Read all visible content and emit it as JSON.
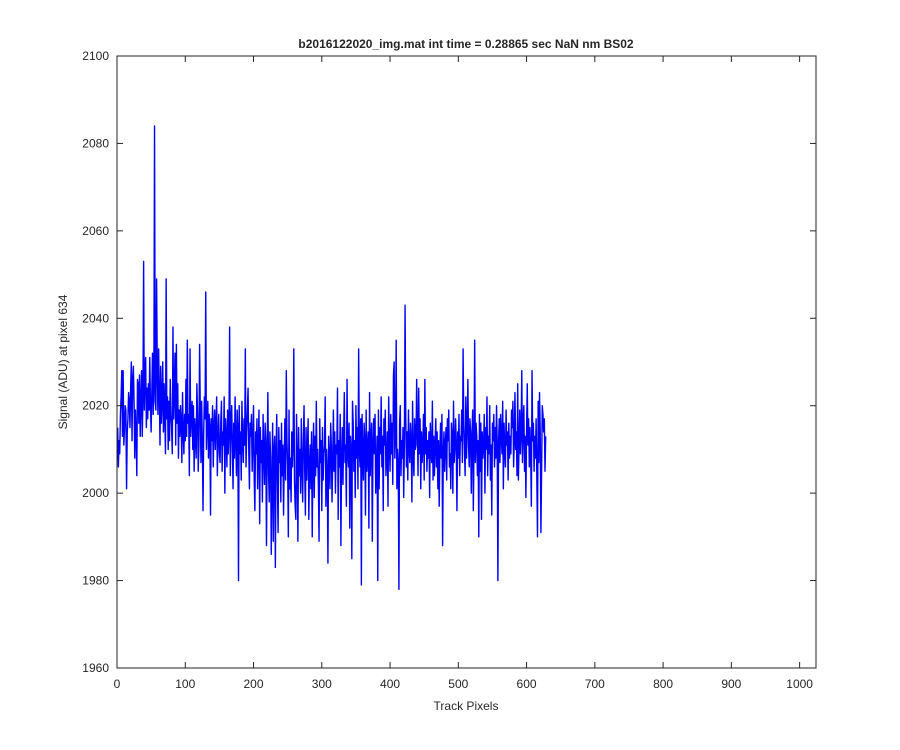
{
  "chart_data": {
    "type": "line",
    "title": "b2016122020_img.mat int time = 0.28865 sec  NaN nm BS02",
    "xlabel": "Track Pixels",
    "ylabel": "Signal (ADU) at pixel 634",
    "xlim": [
      0,
      1024
    ],
    "ylim": [
      1960,
      2100
    ],
    "xticks": [
      "0",
      "100",
      "200",
      "300",
      "400",
      "500",
      "600",
      "700",
      "800",
      "900",
      "1000"
    ],
    "yticks": [
      "1960",
      "1980",
      "2000",
      "2020",
      "2040",
      "2060",
      "2080",
      "2100"
    ],
    "grid": false,
    "legend": "none",
    "series": [
      {
        "color": "#0000ff",
        "x_start": 1,
        "x_step": 1,
        "values": [
          2015,
          2006,
          2012,
          2009,
          2018,
          2022,
          2028,
          2013,
          2028,
          2011,
          2015,
          2020,
          2019,
          2001,
          2014,
          2017,
          2023,
          2021,
          2015,
          2024,
          2030,
          2012,
          2026,
          2029,
          2021,
          2008,
          2019,
          2014,
          2004,
          2026,
          2025,
          2016,
          2027,
          2013,
          2021,
          2028,
          2013,
          2022,
          2053,
          2019,
          2027,
          2031,
          2015,
          2024,
          2017,
          2025,
          2019,
          2031,
          2020,
          2014,
          2023,
          2032,
          2018,
          2024,
          2084,
          2021,
          2019,
          2049,
          2028,
          2018,
          2033,
          2023,
          2011,
          2029,
          2016,
          2021,
          2030,
          2014,
          2025,
          2018,
          2009,
          2049,
          2017,
          2022,
          2010,
          2021,
          2012,
          2026,
          2018,
          2015,
          2009,
          2038,
          2017,
          2023,
          2032,
          2011,
          2034,
          2016,
          2025,
          2008,
          2019,
          2013,
          2020,
          2016,
          2007,
          2023,
          2014,
          2009,
          2018,
          2012,
          2026,
          2013,
          2035,
          2016,
          2018,
          2004,
          2033,
          2013,
          2018,
          2021,
          2010,
          2020,
          2005,
          2017,
          2013,
          2008,
          2025,
          2018,
          2005,
          2011,
          2034,
          2019,
          2007,
          2021,
          2012,
          1996,
          2014,
          2022,
          2017,
          2046,
          2010,
          2016,
          2021,
          2008,
          2018,
          2015,
          1995,
          2017,
          2012,
          2020,
          2006,
          2015,
          2019,
          2010,
          2016,
          2022,
          2004,
          2013,
          2018,
          2009,
          2007,
          2016,
          2021,
          2005,
          2014,
          2011,
          2022,
          2000,
          2017,
          2013,
          2006,
          2019,
          2009,
          2014,
          2038,
          2004,
          2015,
          2020,
          2011,
          2001,
          2016,
          2008,
          2022,
          2012,
          2004,
          2019,
          2015,
          1980,
          2020,
          2009,
          2014,
          2003,
          2021,
          2012,
          2007,
          2017,
          2011,
          2033,
          2006,
          2014,
          2019,
          2024,
          2010,
          2001,
          2016,
          2013,
          2018,
          2005,
          2012,
          2020,
          2003,
          1996,
          2014,
          2009,
          2017,
          2001,
          2011,
          2019,
          1993,
          2015,
          2007,
          2012,
          1998,
          2018,
          2009,
          2002,
          2016,
          2012,
          1988,
          2010,
          2023,
          2005,
          1998,
          2014,
          2008,
          1986,
          2003,
          2016,
          1989,
          2010,
          2013,
          1983,
          2009,
          2018,
          2002,
          1991,
          2015,
          2007,
          2012,
          1998,
          2016,
          2004,
          2011,
          1995,
          2008,
          2017,
          2003,
          2028,
          2012,
          2006,
          1990,
          2019,
          2001,
          2008,
          1998,
          2014,
          2006,
          2011,
          2033,
          2003,
          1997,
          1994,
          2018,
          2008,
          1989,
          2015,
          2004,
          2010,
          2000,
          2017,
          2006,
          1998,
          2012,
          2020,
          2005,
          1995,
          2015,
          2003,
          2010,
          2017,
          1994,
          2006,
          2011,
          2001,
          2014,
          1990,
          2008,
          2016,
          1999,
          2013,
          2004,
          2021,
          2006,
          2010,
          2002,
          1989,
          2017,
          2007,
          2012,
          1996,
          2015,
          2003,
          2009,
          2011,
          2022,
          1997,
          2010,
          2005,
          1984,
          2013,
          2008,
          2001,
          2016,
          2011,
          1998,
          2007,
          2019,
          2005,
          2014,
          2000,
          2011,
          2009,
          2024,
          1994,
          2012,
          2006,
          2018,
          1988,
          2008,
          2015,
          2002,
          2013,
          2023,
          2007,
          2011,
          1997,
          2026,
          2009,
          2006,
          2016,
          1992,
          2013,
          2010,
          1985,
          2021,
          2016,
          2005,
          2012,
          1999,
          2020,
          2008,
          2015,
          2001,
          2033,
          2010,
          2006,
          2017,
          1979,
          2018,
          2009,
          2003,
          2016,
          2012,
          1995,
          2019,
          2005,
          2010,
          2014,
          1992,
          2023,
          2004,
          2012,
          2016,
          1989,
          2011,
          2017,
          2009,
          2018,
          2000,
          2006,
          2013,
          1980,
          2019,
          2001,
          2015,
          2009,
          2022,
          2006,
          2013,
          1996,
          2017,
          2011,
          2019,
          2004,
          2008,
          2014,
          1997,
          2022,
          2011,
          2005,
          2018,
          2009,
          2016,
          2002,
          2027,
          2030,
          2008,
          2013,
          2035,
          2001,
          2010,
          2007,
          1978,
          2016,
          2020,
          2004,
          2012,
          2008,
          2015,
          1999,
          2011,
          2043,
          2018,
          2006,
          2014,
          2003,
          2019,
          2010,
          2007,
          2016,
          2012,
          1998,
          2021,
          2008,
          2004,
          2017,
          2010,
          2011,
          2026,
          2015,
          2004,
          2024,
          2009,
          2017,
          2001,
          2014,
          2007,
          2011,
          2018,
          2003,
          2026,
          2009,
          2015,
          2005,
          2012,
          2008,
          2014,
          1999,
          2016,
          2010,
          2007,
          2021,
          2003,
          2013,
          2004,
          2011,
          2017,
          2006,
          2014,
          2001,
          2012,
          1997,
          2010,
          2016,
          2008,
          2018,
          1988,
          2009,
          2014,
          2005,
          2011,
          2015,
          2003,
          2017,
          2012,
          2019,
          2006,
          2009,
          2001,
          2016,
          2013,
          2000,
          2021,
          2007,
          2010,
          2017,
          2011,
          1996,
          2014,
          2008,
          2018,
          2004,
          2013,
          2012,
          2019,
          2007,
          2033,
          2016,
          2010,
          2004,
          2022,
          2008,
          2015,
          2026,
          2011,
          2006,
          2017,
          2014,
          2000,
          2013,
          2019,
          1996,
          2011,
          2035,
          2007,
          2016,
          2013,
          2004,
          2012,
          1990,
          2018,
          2005,
          2016,
          1994,
          2014,
          2008,
          2011,
          2018,
          2000,
          2015,
          2010,
          2022,
          2004,
          2013,
          2009,
          2020,
          2003,
          2011,
          1995,
          2016,
          2012,
          2018,
          2006,
          2015,
          2008,
          2020,
          2011,
          1980,
          2012,
          2017,
          2007,
          2018,
          2013,
          2009,
          2021,
          2001,
          2016,
          2010,
          2006,
          2019,
          2011,
          2014,
          2003,
          2016,
          2008,
          2013,
          2009,
          2019,
          2015,
          2021,
          2006,
          2012,
          2023,
          2010,
          2014,
          2004,
          2025,
          2003,
          2011,
          2019,
          2009,
          2014,
          2028,
          2007,
          2016,
          2020,
          2005,
          2013,
          1999,
          2014,
          2025,
          2011,
          2017,
          2006,
          2015,
          2009,
          1997,
          2028,
          2012,
          2016,
          2005,
          2013,
          2008,
          2017,
          2004,
          1990,
          2021,
          2007,
          2023,
          2014,
          1991,
          2005,
          2020,
          2018,
          2014,
          2017,
          2005,
          2013
        ]
      }
    ]
  }
}
